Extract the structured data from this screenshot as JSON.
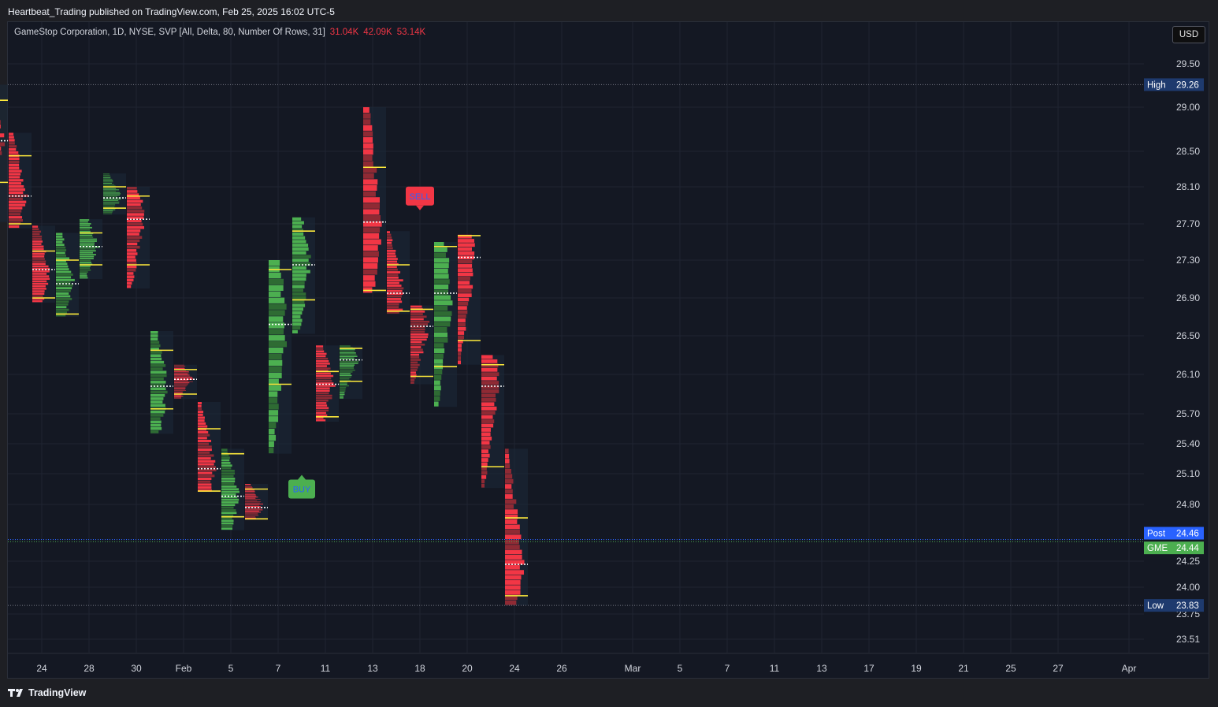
{
  "header": {
    "publish_line": "Heartbeat_Trading published on TradingView.com, Feb 25, 2025 16:02 UTC-5"
  },
  "legend": {
    "title": "GameStop Corporation, 1D, NYSE, SVP [All, Delta, 80, Number Of Rows, 31]",
    "values": [
      "31.04K",
      "42.09K",
      "53.14K"
    ]
  },
  "currency_button": "USD",
  "footer": {
    "brand": "TradingView"
  },
  "colors": {
    "background": "#141823",
    "up": "#4caf50",
    "down": "#f23645",
    "poc": "#ffffff",
    "value_area": "#ffeb3b",
    "box": "#1c2a3a"
  },
  "price_labels": [
    {
      "label": "High",
      "value": "29.26",
      "price": 29.26,
      "color": "#1e3a6e"
    },
    {
      "label": "Post",
      "value": "24.46",
      "price": 24.46,
      "color": "#2962ff"
    },
    {
      "label": "GME",
      "value": "24.44",
      "price": 24.44,
      "color": "#4caf50"
    },
    {
      "label": "Low",
      "value": "23.83",
      "price": 23.83,
      "color": "#1e3a6e"
    }
  ],
  "signals": [
    {
      "label": "SELL",
      "type": "sell",
      "date": "Feb 18",
      "price": 28.0
    },
    {
      "label": "BUY",
      "type": "buy",
      "date": "Feb 10",
      "price": 24.95
    }
  ],
  "chart_data": {
    "type": "bar",
    "title": "GameStop Corporation, 1D, NYSE, SVP [All, Delta, 80, Number Of Rows, 31]",
    "y_ticks": [
      23.51,
      23.75,
      24.0,
      24.25,
      24.8,
      25.1,
      25.4,
      25.7,
      26.1,
      26.5,
      26.9,
      27.3,
      27.7,
      28.1,
      28.5,
      29.0,
      29.5
    ],
    "x_ticks": [
      {
        "label": "24",
        "date": "2025-01-24"
      },
      {
        "label": "28",
        "date": "2025-01-28"
      },
      {
        "label": "30",
        "date": "2025-01-30"
      },
      {
        "label": "Feb",
        "date": "2025-02-03"
      },
      {
        "label": "5",
        "date": "2025-02-05"
      },
      {
        "label": "7",
        "date": "2025-02-07"
      },
      {
        "label": "11",
        "date": "2025-02-11"
      },
      {
        "label": "13",
        "date": "2025-02-13"
      },
      {
        "label": "18",
        "date": "2025-02-18"
      },
      {
        "label": "20",
        "date": "2025-02-20"
      },
      {
        "label": "24",
        "date": "2025-02-24"
      },
      {
        "label": "26",
        "date": "2025-02-26"
      },
      {
        "label": "Mar",
        "date": "2025-03-03"
      },
      {
        "label": "5",
        "date": "2025-03-05"
      },
      {
        "label": "7",
        "date": "2025-03-07"
      },
      {
        "label": "11",
        "date": "2025-03-11"
      },
      {
        "label": "13",
        "date": "2025-03-13"
      },
      {
        "label": "17",
        "date": "2025-03-17"
      },
      {
        "label": "19",
        "date": "2025-03-19"
      },
      {
        "label": "21",
        "date": "2025-03-21"
      },
      {
        "label": "25",
        "date": "2025-03-25"
      },
      {
        "label": "27",
        "date": "2025-03-27"
      },
      {
        "label": "Apr",
        "date": "2025-04-01"
      }
    ],
    "sessions": [
      {
        "date": "2025-01-23",
        "high": 29.26,
        "low": 27.72,
        "open": 29.2,
        "close": 27.9,
        "poc": 28.62,
        "vah": 29.08,
        "val": 28.15
      },
      {
        "date": "2025-01-24",
        "high": 28.71,
        "low": 27.65,
        "open": 28.65,
        "close": 27.7,
        "poc": 28.0,
        "vah": 28.45,
        "val": 27.7
      },
      {
        "date": "2025-01-27",
        "high": 27.68,
        "low": 26.85,
        "open": 27.6,
        "close": 26.9,
        "poc": 27.2,
        "vah": 27.4,
        "val": 26.9
      },
      {
        "date": "2025-01-28",
        "high": 27.6,
        "low": 26.7,
        "open": 26.8,
        "close": 27.35,
        "poc": 27.05,
        "vah": 27.3,
        "val": 26.73
      },
      {
        "date": "2025-01-29",
        "high": 27.75,
        "low": 27.1,
        "open": 27.1,
        "close": 27.7,
        "poc": 27.45,
        "vah": 27.6,
        "val": 27.25
      },
      {
        "date": "2025-01-30",
        "high": 28.25,
        "low": 27.8,
        "open": 27.82,
        "close": 28.2,
        "poc": 27.98,
        "vah": 28.1,
        "val": 27.87
      },
      {
        "date": "2025-01-31",
        "high": 28.1,
        "low": 27.0,
        "open": 28.05,
        "close": 27.0,
        "poc": 27.75,
        "vah": 28.0,
        "val": 27.25
      },
      {
        "date": "2025-02-03",
        "high": 26.55,
        "low": 25.5,
        "open": 25.55,
        "close": 26.5,
        "poc": 25.98,
        "vah": 26.35,
        "val": 25.75
      },
      {
        "date": "2025-02-04",
        "high": 26.2,
        "low": 25.85,
        "open": 26.18,
        "close": 25.9,
        "poc": 26.05,
        "vah": 26.15,
        "val": 25.9
      },
      {
        "date": "2025-02-05",
        "high": 25.82,
        "low": 24.92,
        "open": 25.8,
        "close": 24.95,
        "poc": 25.15,
        "vah": 25.55,
        "val": 24.93
      },
      {
        "date": "2025-02-06",
        "high": 25.35,
        "low": 24.55,
        "open": 24.6,
        "close": 25.3,
        "poc": 24.88,
        "vah": 25.3,
        "val": 24.68
      },
      {
        "date": "2025-02-07",
        "high": 25.0,
        "low": 24.65,
        "open": 24.98,
        "close": 24.68,
        "poc": 24.77,
        "vah": 24.95,
        "val": 24.66
      },
      {
        "date": "2025-02-10",
        "high": 27.3,
        "low": 25.3,
        "open": 25.35,
        "close": 27.25,
        "poc": 26.62,
        "vah": 27.2,
        "val": 26.0
      },
      {
        "date": "2025-02-11",
        "high": 27.77,
        "low": 26.52,
        "open": 26.55,
        "close": 27.7,
        "poc": 27.25,
        "vah": 27.62,
        "val": 26.88
      },
      {
        "date": "2025-02-12",
        "high": 26.4,
        "low": 25.62,
        "open": 26.35,
        "close": 25.7,
        "poc": 26.0,
        "vah": 26.13,
        "val": 25.67
      },
      {
        "date": "2025-02-13",
        "high": 26.4,
        "low": 25.85,
        "open": 25.88,
        "close": 26.35,
        "poc": 26.25,
        "vah": 26.37,
        "val": 26.03
      },
      {
        "date": "2025-02-14",
        "high": 29.0,
        "low": 26.95,
        "open": 29.0,
        "close": 26.98,
        "poc": 27.72,
        "vah": 28.32,
        "val": 26.98
      },
      {
        "date": "2025-02-18",
        "high": 27.62,
        "low": 26.73,
        "open": 27.55,
        "close": 26.75,
        "poc": 26.95,
        "vah": 27.25,
        "val": 26.76
      },
      {
        "date": "2025-02-19",
        "high": 26.82,
        "low": 26.0,
        "open": 26.8,
        "close": 26.05,
        "poc": 26.6,
        "vah": 26.78,
        "val": 26.08
      },
      {
        "date": "2025-02-20",
        "high": 27.5,
        "low": 25.77,
        "open": 25.8,
        "close": 27.45,
        "poc": 26.95,
        "vah": 27.45,
        "val": 26.18
      },
      {
        "date": "2025-02-21",
        "high": 27.58,
        "low": 26.2,
        "open": 27.55,
        "close": 26.25,
        "poc": 27.33,
        "vah": 27.57,
        "val": 26.45
      },
      {
        "date": "2025-02-24",
        "high": 26.3,
        "low": 24.96,
        "open": 26.25,
        "close": 25.0,
        "poc": 25.98,
        "vah": 26.2,
        "val": 25.17
      },
      {
        "date": "2025-02-25",
        "high": 25.35,
        "low": 23.83,
        "open": 25.3,
        "close": 24.44,
        "poc": 24.22,
        "vah": 24.67,
        "val": 23.92
      }
    ]
  }
}
